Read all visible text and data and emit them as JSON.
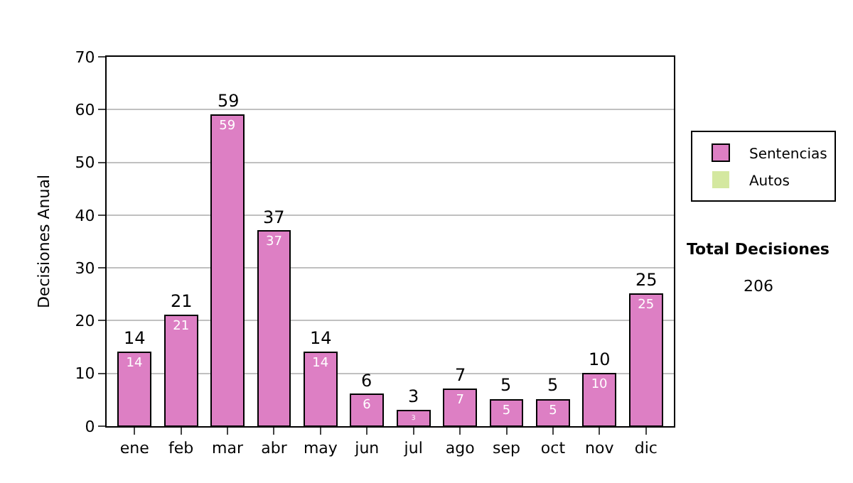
{
  "chart_data": {
    "type": "bar",
    "stacked": true,
    "ylabel": "Decisiones Anual",
    "categories": [
      "ene",
      "feb",
      "mar",
      "abr",
      "may",
      "jun",
      "jul",
      "ago",
      "sep",
      "oct",
      "nov",
      "dic"
    ],
    "series": [
      {
        "name": "Sentencias",
        "color": "#dd7fc4",
        "values": [
          14,
          21,
          59,
          37,
          14,
          6,
          3,
          7,
          5,
          5,
          10,
          25
        ],
        "value_labels": [
          "14",
          "21",
          "59",
          "37",
          "14",
          "6",
          "3",
          "7",
          "5",
          "5",
          "10",
          "25"
        ]
      },
      {
        "name": "Autos",
        "color": "#d4e8a0",
        "values": [
          0,
          0,
          0,
          0,
          0,
          0,
          0,
          0,
          0,
          0,
          0,
          0
        ]
      }
    ],
    "totals": [
      "14",
      "21",
      "59",
      "37",
      "14",
      "6",
      "3",
      "7",
      "5",
      "5",
      "10",
      "25"
    ],
    "ylim": [
      0,
      70
    ],
    "yticks": [
      0,
      10,
      20,
      30,
      40,
      50,
      60,
      70
    ],
    "grid": "y",
    "legend": "right",
    "annotations": [
      "Total Decisiones",
      "206"
    ]
  }
}
